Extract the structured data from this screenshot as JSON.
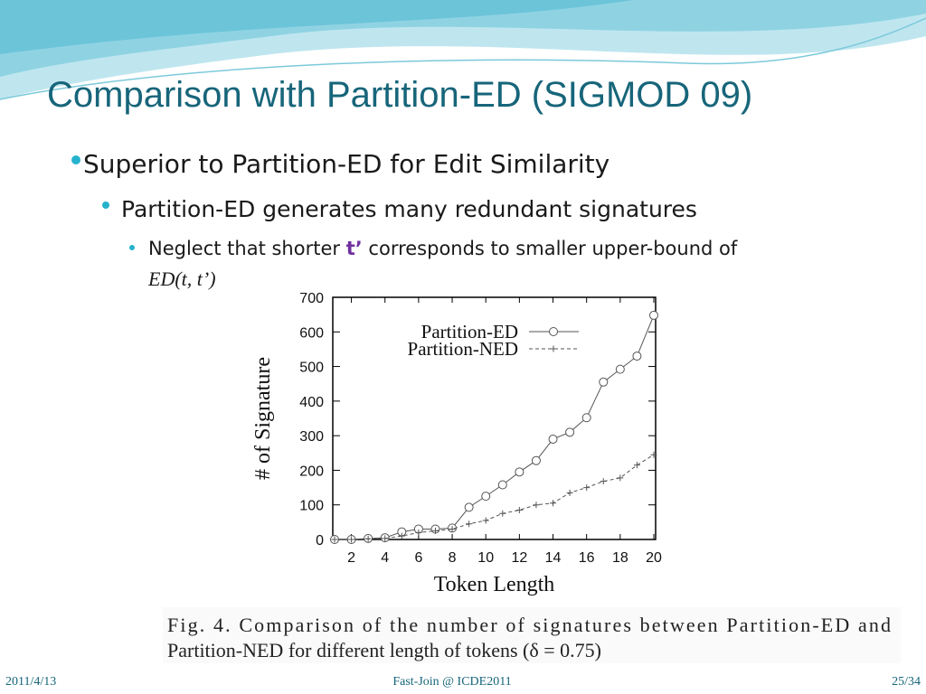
{
  "slide": {
    "title": "Comparison with Partition-ED (SIGMOD 09)",
    "bullet1": "Superior to Partition-ED for Edit Similarity",
    "bullet2": "Partition-ED generates many redundant signatures",
    "bullet3": {
      "before": "Neglect that shorter",
      "highlight": "t’",
      "after": "corresponds to smaller upper-bound of",
      "formula": "ED(t, t’)"
    },
    "caption": [
      "Fig. 4.    Comparison of the number of signatures between Partition-ED and",
      "Partition-NED for different length of tokens (δ = 0.75)"
    ],
    "footer": {
      "date": "2011/4/13",
      "center": "Fast-Join @ ICDE2011",
      "page": "25/34"
    }
  },
  "chart_data": {
    "type": "line",
    "x_label": "Token Length",
    "y_label": "# of Signature",
    "x": [
      1,
      2,
      3,
      4,
      5,
      6,
      7,
      8,
      9,
      10,
      11,
      12,
      13,
      14,
      15,
      16,
      17,
      18,
      19,
      20
    ],
    "series": [
      {
        "name": "Partition-ED",
        "color": "#555555",
        "marker": "circle",
        "dashed": false,
        "values": [
          0,
          0,
          3,
          5,
          22,
          30,
          30,
          33,
          93,
          125,
          158,
          195,
          228,
          290,
          310,
          352,
          455,
          492,
          530,
          648
        ]
      },
      {
        "name": "Partition-NED",
        "color": "#555555",
        "marker": "plus",
        "dashed": true,
        "values": [
          0,
          0,
          2,
          3,
          10,
          20,
          25,
          30,
          45,
          55,
          75,
          85,
          100,
          105,
          135,
          150,
          168,
          178,
          215,
          245
        ]
      }
    ],
    "xlim": [
      1,
      20
    ],
    "xticks": [
      2,
      4,
      6,
      8,
      10,
      12,
      14,
      16,
      18,
      20
    ],
    "ylim": [
      0,
      700
    ],
    "yticks": [
      0,
      100,
      200,
      300,
      400,
      500,
      600,
      700
    ]
  }
}
